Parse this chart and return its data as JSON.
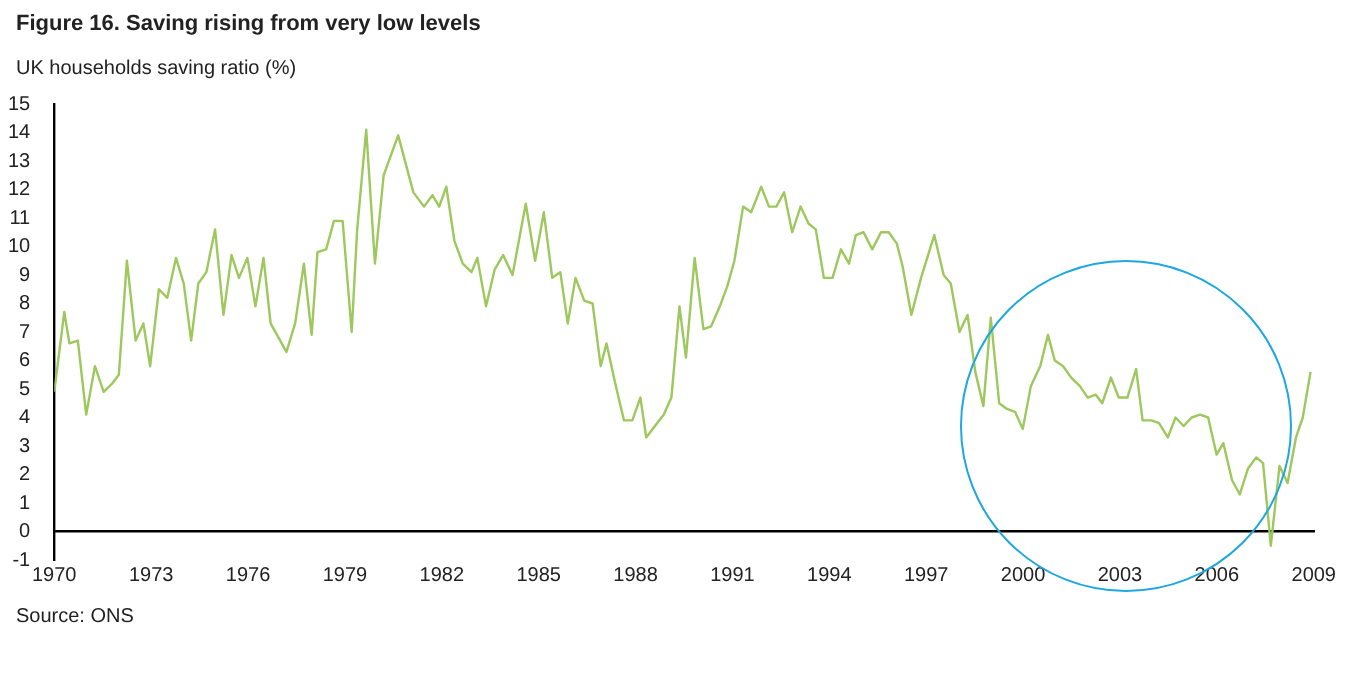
{
  "chart_data": {
    "type": "line",
    "title": "Figure 16. Saving rising from very low levels",
    "subtitle": "UK households saving ratio (%)",
    "annotations": [
      "Source: ONS"
    ],
    "color": "#9cc85c",
    "x": [
      1970.0,
      1970.31,
      1970.47,
      1970.73,
      1970.99,
      1971.26,
      1971.53,
      1971.8,
      1972.0,
      1972.25,
      1972.52,
      1972.76,
      1972.97,
      1973.24,
      1973.5,
      1973.77,
      1974.01,
      1974.24,
      1974.46,
      1974.71,
      1974.98,
      1975.24,
      1975.49,
      1975.72,
      1975.98,
      1976.23,
      1976.48,
      1976.7,
      1977.19,
      1977.46,
      1977.73,
      1977.97,
      1978.15,
      1978.42,
      1978.66,
      1978.93,
      1979.21,
      1979.38,
      1979.66,
      1979.93,
      1980.2,
      1980.65,
      1981.12,
      1981.45,
      1981.71,
      1981.92,
      1982.14,
      1982.39,
      1982.65,
      1982.92,
      1983.1,
      1983.37,
      1983.64,
      1983.9,
      1984.19,
      1984.6,
      1984.89,
      1985.16,
      1985.42,
      1985.67,
      1985.9,
      1986.14,
      1986.41,
      1986.67,
      1986.92,
      1987.1,
      1987.37,
      1987.64,
      1987.9,
      1988.15,
      1988.33,
      1988.6,
      1988.87,
      1989.11,
      1989.36,
      1989.56,
      1989.83,
      1990.1,
      1990.34,
      1990.61,
      1990.84,
      1991.06,
      1991.33,
      1991.58,
      1991.89,
      1992.13,
      1992.36,
      1992.6,
      1992.85,
      1993.11,
      1993.36,
      1993.58,
      1993.83,
      1994.1,
      1994.36,
      1994.61,
      1994.82,
      1995.06,
      1995.33,
      1995.6,
      1995.84,
      1996.09,
      1996.27,
      1996.54,
      1996.84,
      1997.25,
      1997.54,
      1997.76,
      1998.03,
      1998.28,
      1998.52,
      1998.77,
      1999.0,
      1999.26,
      1999.5,
      1999.75,
      1999.99,
      2000.24,
      2000.53,
      2000.77,
      2000.98,
      2001.24,
      2001.49,
      2001.76,
      2002.0,
      2002.25,
      2002.45,
      2002.72,
      2002.96,
      2003.23,
      2003.5,
      2003.7,
      2003.97,
      2004.21,
      2004.48,
      2004.72,
      2004.97,
      2005.22,
      2005.48,
      2005.73,
      2005.99,
      2006.2,
      2006.47,
      2006.71,
      2006.96,
      2007.22,
      2007.43,
      2007.67,
      2007.94,
      2008.19,
      2008.45,
      2008.66,
      2008.9
    ],
    "values": [
      4.9,
      7.7,
      6.6,
      6.7,
      4.1,
      5.8,
      4.9,
      5.2,
      5.5,
      9.5,
      6.7,
      7.3,
      5.8,
      8.5,
      8.2,
      9.6,
      8.7,
      6.7,
      8.7,
      9.1,
      10.6,
      7.6,
      9.7,
      8.9,
      9.6,
      7.9,
      9.6,
      7.3,
      6.3,
      7.3,
      9.4,
      6.9,
      9.8,
      9.9,
      10.9,
      10.9,
      7.0,
      10.6,
      14.1,
      9.4,
      12.5,
      13.9,
      11.9,
      11.4,
      11.8,
      11.4,
      12.1,
      10.2,
      9.4,
      9.1,
      9.6,
      7.9,
      9.2,
      9.7,
      9.0,
      11.5,
      9.5,
      11.2,
      8.9,
      9.1,
      7.3,
      8.9,
      8.1,
      8.0,
      5.8,
      6.6,
      5.2,
      3.9,
      3.9,
      4.7,
      3.3,
      3.7,
      4.1,
      4.7,
      7.9,
      6.1,
      9.6,
      7.1,
      7.2,
      7.9,
      8.6,
      9.5,
      11.4,
      11.2,
      12.1,
      11.4,
      11.4,
      11.9,
      10.5,
      11.4,
      10.8,
      10.6,
      8.9,
      8.9,
      9.9,
      9.4,
      10.4,
      10.5,
      9.9,
      10.5,
      10.5,
      10.1,
      9.3,
      7.6,
      8.9,
      10.4,
      9.0,
      8.7,
      7.0,
      7.6,
      5.6,
      4.4,
      7.5,
      4.5,
      4.3,
      4.2,
      3.6,
      5.1,
      5.8,
      6.9,
      6.0,
      5.8,
      5.4,
      5.1,
      4.7,
      4.8,
      4.5,
      5.4,
      4.7,
      4.7,
      5.7,
      3.9,
      3.9,
      3.8,
      3.3,
      4.0,
      3.7,
      4.0,
      4.1,
      4.0,
      2.7,
      3.1,
      1.8,
      1.3,
      2.2,
      2.6,
      2.4,
      -0.5,
      2.3,
      1.7,
      3.3,
      4.0,
      5.6
    ],
    "xlim": [
      1970,
      2009
    ],
    "xticks": [
      1970,
      1973,
      1976,
      1979,
      1982,
      1985,
      1988,
      1991,
      1994,
      1997,
      2000,
      2003,
      2006,
      2009
    ],
    "ylim": [
      -1,
      15
    ],
    "yticks": [
      -1,
      0,
      1,
      2,
      3,
      4,
      5,
      6,
      7,
      8,
      9,
      10,
      11,
      12,
      13,
      14,
      15
    ]
  }
}
